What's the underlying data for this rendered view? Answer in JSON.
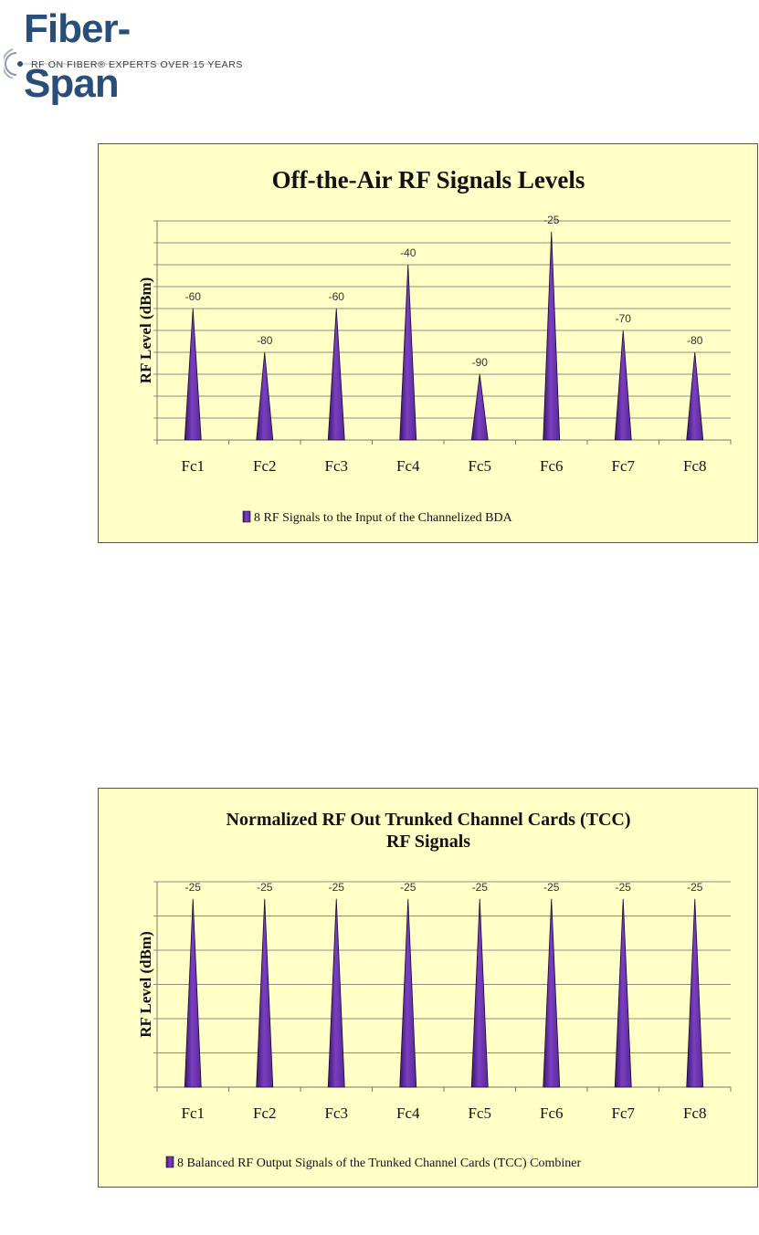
{
  "logo": {
    "wordmark": "Fiber-Span",
    "tagline": "RF ON FIBER® EXPERTS OVER 15 YEARS",
    "color": "#2a4e7a"
  },
  "colors": {
    "chart_background": "#ffffc6",
    "bar_fill": "#7a3fc0",
    "bar_dark": "#3d1670",
    "grid": "#8c8c8c"
  },
  "chart_data": [
    {
      "type": "bar",
      "title": [
        "Off-the-Air RF Signals Levels"
      ],
      "ylabel": "RF Level (dBm)",
      "xlabel": "",
      "categories": [
        "Fc1",
        "Fc2",
        "Fc3",
        "Fc4",
        "Fc5",
        "Fc6",
        "Fc7",
        "Fc8"
      ],
      "series": [
        {
          "name": "8 RF Signals to the Input of the Channelized BDA",
          "values": [
            -60,
            -80,
            -60,
            -40,
            -90,
            -25,
            -70,
            -80
          ]
        }
      ],
      "ylim": [
        -120,
        -20
      ],
      "grid": true,
      "legend": "bottom",
      "data_labels": true
    },
    {
      "type": "bar",
      "title": [
        "Normalized RF Out Trunked Channel Cards (TCC)",
        "RF Signals"
      ],
      "ylabel": "RF Level (dBm)",
      "xlabel": "",
      "categories": [
        "Fc1",
        "Fc2",
        "Fc3",
        "Fc4",
        "Fc5",
        "Fc6",
        "Fc7",
        "Fc8"
      ],
      "series": [
        {
          "name": "8 Balanced RF Output Signals of the Trunked Channel Cards (TCC) Combiner",
          "values": [
            -25,
            -25,
            -25,
            -25,
            -25,
            -25,
            -25,
            -25
          ]
        }
      ],
      "ylim": [
        -80,
        -20
      ],
      "grid": true,
      "legend": "bottom",
      "data_labels": true
    }
  ]
}
